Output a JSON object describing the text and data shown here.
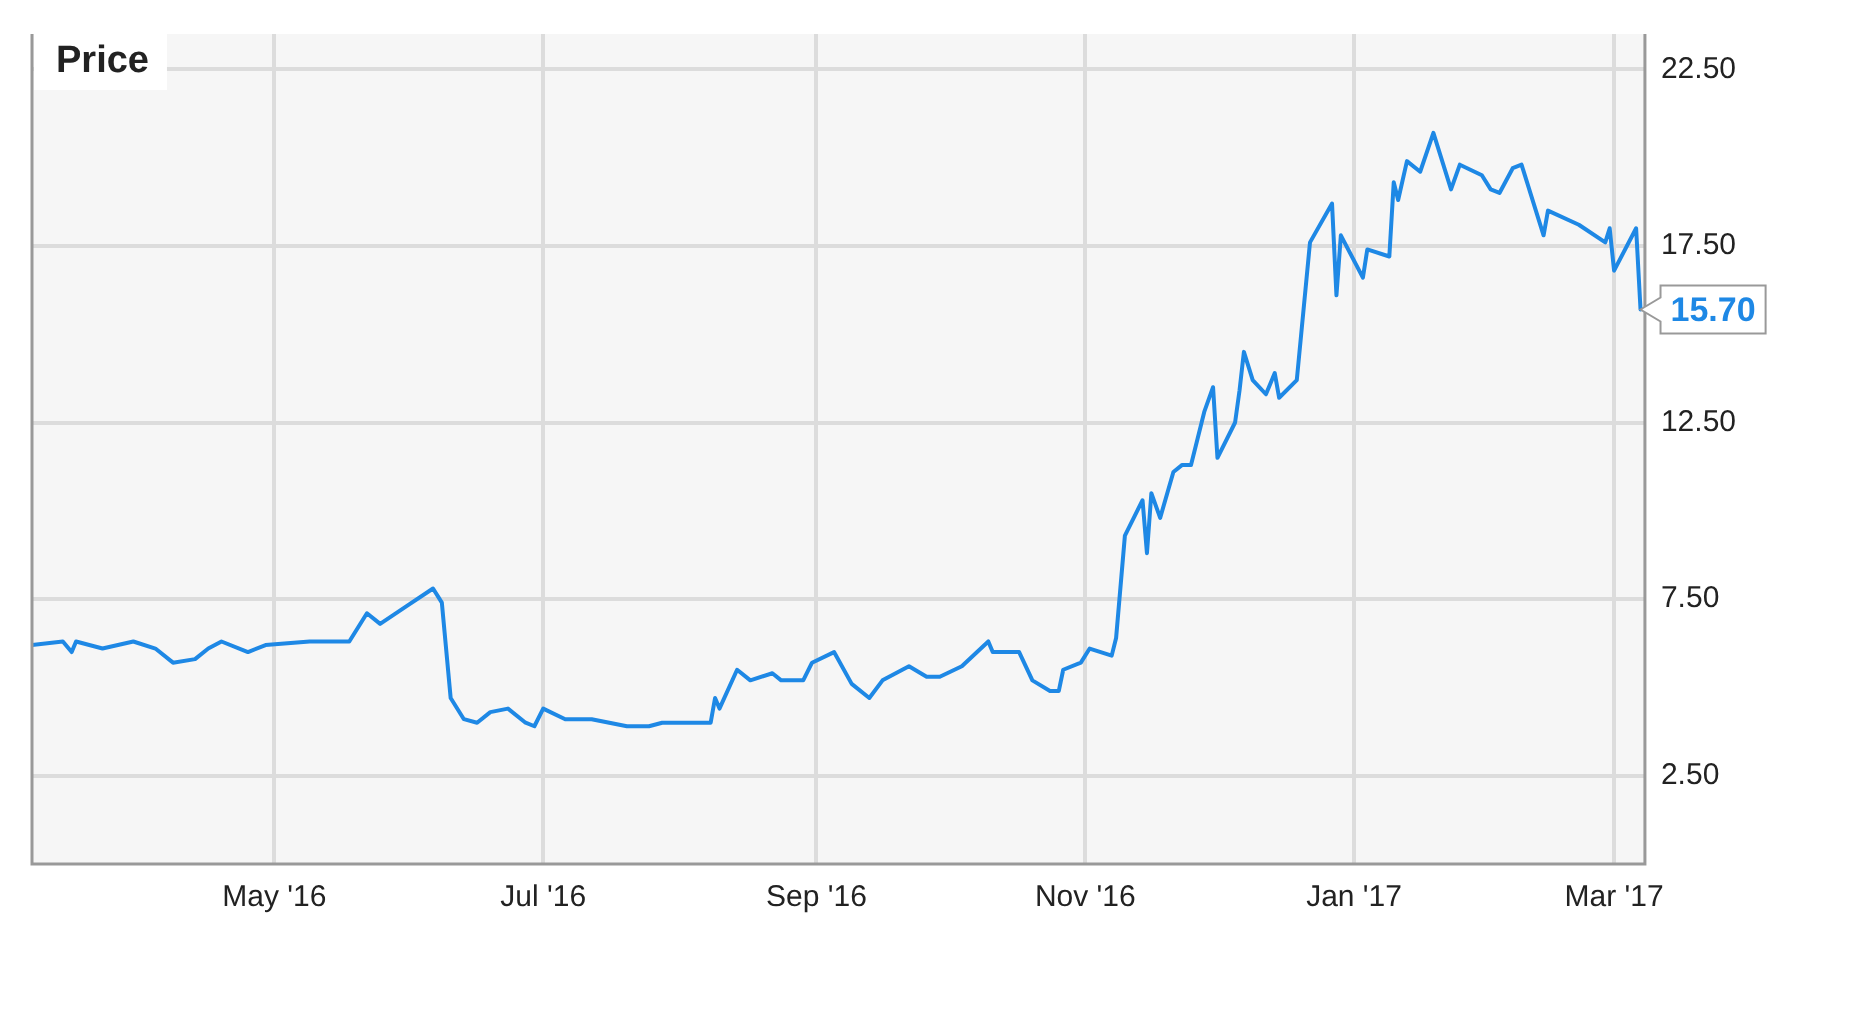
{
  "chart_data": {
    "type": "line",
    "title": "Price",
    "x": [
      "2016-03-07",
      "2016-03-14",
      "2016-03-16",
      "2016-03-17",
      "2016-03-23",
      "2016-03-30",
      "2016-04-04",
      "2016-04-08",
      "2016-04-13",
      "2016-04-16",
      "2016-04-19",
      "2016-04-25",
      "2016-04-29",
      "2016-05-09",
      "2016-05-18",
      "2016-05-22",
      "2016-05-25",
      "2016-05-31",
      "2016-06-06",
      "2016-06-08",
      "2016-06-10",
      "2016-06-13",
      "2016-06-16",
      "2016-06-19",
      "2016-06-23",
      "2016-06-27",
      "2016-06-29",
      "2016-07-01",
      "2016-07-06",
      "2016-07-12",
      "2016-07-20",
      "2016-07-25",
      "2016-07-28",
      "2016-08-08",
      "2016-08-09",
      "2016-08-10",
      "2016-08-14",
      "2016-08-17",
      "2016-08-22",
      "2016-08-24",
      "2016-08-29",
      "2016-08-31",
      "2016-09-05",
      "2016-09-09",
      "2016-09-13",
      "2016-09-16",
      "2016-09-22",
      "2016-09-26",
      "2016-09-29",
      "2016-10-04",
      "2016-10-10",
      "2016-10-11",
      "2016-10-17",
      "2016-10-20",
      "2016-10-24",
      "2016-10-26",
      "2016-10-27",
      "2016-10-31",
      "2016-11-02",
      "2016-11-07",
      "2016-11-08",
      "2016-11-10",
      "2016-11-14",
      "2016-11-15",
      "2016-11-16",
      "2016-11-18",
      "2016-11-21",
      "2016-11-23",
      "2016-11-25",
      "2016-11-28",
      "2016-11-30",
      "2016-12-01",
      "2016-12-05",
      "2016-12-06",
      "2016-12-07",
      "2016-12-09",
      "2016-12-12",
      "2016-12-14",
      "2016-12-15",
      "2016-12-19",
      "2016-12-22",
      "2016-12-27",
      "2016-12-28",
      "2016-12-29",
      "2017-01-03",
      "2017-01-04",
      "2017-01-09",
      "2017-01-10",
      "2017-01-11",
      "2017-01-13",
      "2017-01-16",
      "2017-01-19",
      "2017-01-23",
      "2017-01-25",
      "2017-01-30",
      "2017-02-01",
      "2017-02-03",
      "2017-02-06",
      "2017-02-08",
      "2017-02-13",
      "2017-02-14",
      "2017-02-21",
      "2017-02-27",
      "2017-02-28",
      "2017-03-01",
      "2017-03-06",
      "2017-03-07"
    ],
    "series": [
      {
        "color": "#1e88e5",
        "values": [
          6.2,
          6.3,
          6.0,
          6.3,
          6.1,
          6.3,
          6.1,
          5.7,
          5.8,
          6.1,
          6.3,
          6.0,
          6.2,
          6.3,
          6.3,
          7.1,
          6.8,
          7.3,
          7.8,
          7.4,
          4.7,
          4.1,
          4.0,
          4.3,
          4.4,
          4.0,
          3.9,
          4.4,
          4.1,
          4.1,
          3.9,
          3.9,
          4.0,
          4.0,
          4.7,
          4.4,
          5.5,
          5.2,
          5.4,
          5.2,
          5.2,
          5.7,
          6.0,
          5.1,
          4.7,
          5.2,
          5.6,
          5.3,
          5.3,
          5.6,
          6.3,
          6.0,
          6.0,
          5.2,
          4.9,
          4.9,
          5.5,
          5.7,
          6.1,
          5.9,
          6.4,
          9.3,
          10.3,
          8.8,
          10.5,
          9.8,
          11.1,
          11.3,
          11.3,
          12.8,
          13.5,
          11.5,
          12.5,
          13.4,
          14.5,
          13.7,
          13.3,
          13.9,
          13.2,
          13.7,
          17.6,
          18.7,
          16.1,
          17.8,
          16.6,
          17.4,
          17.2,
          19.3,
          18.8,
          19.9,
          19.6,
          20.7,
          19.1,
          19.8,
          19.5,
          19.1,
          19.0,
          19.7,
          19.8,
          17.8,
          18.5,
          18.1,
          17.6,
          18.0,
          16.8,
          18.0,
          15.7
        ],
        "value_labels": [
          null,
          null,
          null,
          null,
          null,
          null,
          null,
          null,
          null,
          null,
          null,
          null,
          null,
          null,
          null,
          null,
          null,
          null,
          null,
          null,
          null,
          null,
          null,
          null,
          null,
          null,
          null,
          null,
          null,
          null,
          null,
          null,
          null,
          null,
          null,
          null,
          null,
          null,
          null,
          null,
          null,
          null,
          null,
          null,
          null,
          null,
          null,
          null,
          null,
          null,
          null,
          null,
          null,
          null,
          null,
          null,
          null,
          null,
          null,
          null,
          null,
          null,
          null,
          null,
          null,
          null,
          null,
          null,
          null,
          null,
          null,
          null,
          null,
          null,
          null,
          null,
          null,
          null,
          null,
          null,
          null,
          null,
          null,
          null,
          null,
          null,
          null,
          null,
          null,
          null,
          null,
          null,
          null,
          null,
          null,
          null,
          null,
          null,
          null,
          null,
          null,
          null,
          null,
          null,
          null,
          null,
          "15.70"
        ]
      }
    ],
    "xlim": [
      "2016-03-07",
      "2017-03-08"
    ],
    "xticks": [
      {
        "value": "2016-05-01",
        "label": "May '16"
      },
      {
        "value": "2016-07-01",
        "label": "Jul '16"
      },
      {
        "value": "2016-09-01",
        "label": "Sep '16"
      },
      {
        "value": "2016-11-01",
        "label": "Nov '16"
      },
      {
        "value": "2017-01-01",
        "label": "Jan '17"
      },
      {
        "value": "2017-03-01",
        "label": "Mar '17"
      }
    ],
    "ylim": [
      0,
      23.5
    ],
    "yticks": [
      {
        "value": 2.5,
        "label": "2.50"
      },
      {
        "value": 7.5,
        "label": "7.50"
      },
      {
        "value": 12.5,
        "label": "12.50"
      },
      {
        "value": 17.5,
        "label": "17.50"
      },
      {
        "value": 22.5,
        "label": "22.50"
      }
    ],
    "grid": true,
    "legend": false,
    "marker": "none",
    "line_style": "solid"
  }
}
